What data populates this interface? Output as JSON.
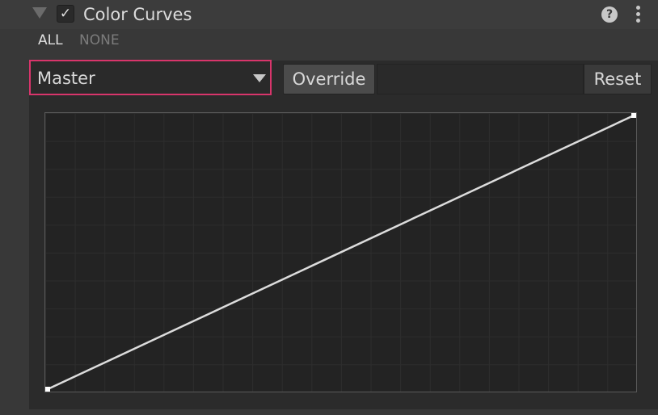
{
  "header": {
    "title": "Color Curves",
    "enabled": true,
    "checkbox_glyph": "✓",
    "help_glyph": "?",
    "icons": [
      "foldout-arrow-icon",
      "checkbox-check-icon",
      "help-icon",
      "more-options-icon"
    ]
  },
  "toggles": {
    "all_label": "ALL",
    "none_label": "NONE"
  },
  "curve_editor": {
    "channel": "Master",
    "override_label": "Override",
    "reset_label": "Reset",
    "curve_line_color": "#dcdcdc",
    "highlight_color": "#d8356b",
    "curve_keys": [
      {
        "input": 0,
        "output": 0
      },
      {
        "input": 1,
        "output": 1
      }
    ]
  }
}
